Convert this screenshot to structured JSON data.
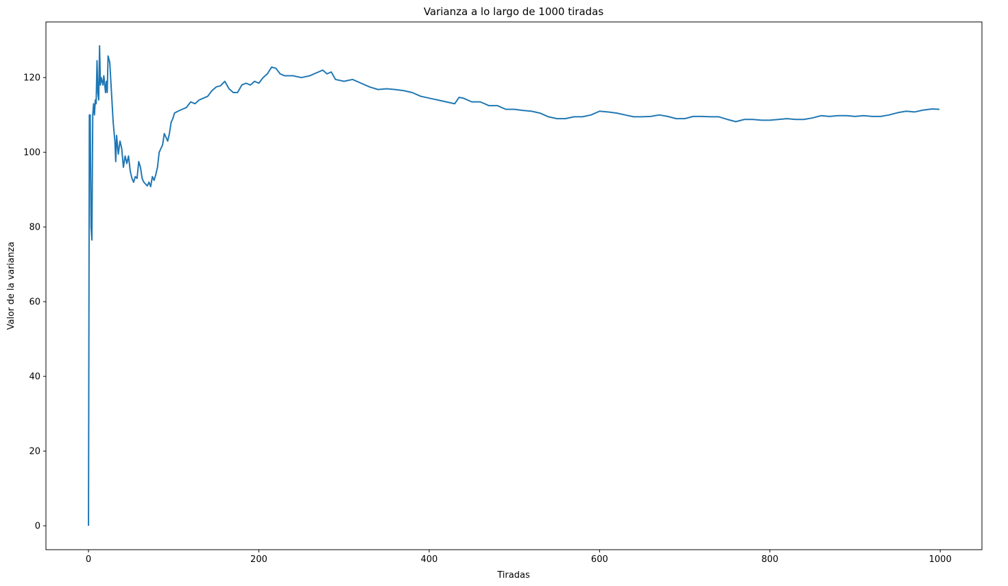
{
  "chart_data": {
    "type": "line",
    "title": "Varianza a lo largo de 1000 tiradas",
    "xlabel": "Tiradas",
    "ylabel": "Valor de la varianza",
    "color": "#1f77b4",
    "x": [
      0,
      1,
      2,
      3,
      4,
      5,
      6,
      7,
      8,
      9,
      10,
      11,
      12,
      13,
      14,
      15,
      17,
      18,
      20,
      21,
      22,
      23,
      25,
      27,
      29,
      31,
      32,
      33,
      35,
      37,
      39,
      41,
      43,
      45,
      47,
      49,
      51,
      53,
      55,
      57,
      59,
      61,
      63,
      65,
      67,
      69,
      71,
      73,
      75,
      77,
      79,
      81,
      83,
      85,
      87,
      89,
      91,
      93,
      95,
      97,
      99,
      101,
      105,
      110,
      115,
      120,
      125,
      130,
      135,
      140,
      145,
      150,
      155,
      160,
      165,
      170,
      175,
      180,
      185,
      190,
      195,
      200,
      205,
      210,
      215,
      220,
      225,
      230,
      240,
      250,
      260,
      270,
      275,
      280,
      285,
      290,
      300,
      310,
      320,
      330,
      340,
      350,
      360,
      370,
      380,
      390,
      400,
      410,
      420,
      430,
      435,
      440,
      450,
      460,
      470,
      480,
      490,
      500,
      510,
      520,
      530,
      540,
      550,
      560,
      570,
      580,
      590,
      600,
      610,
      620,
      630,
      640,
      650,
      660,
      670,
      680,
      690,
      700,
      710,
      720,
      730,
      740,
      750,
      760,
      770,
      780,
      790,
      800,
      810,
      820,
      830,
      840,
      850,
      860,
      870,
      880,
      890,
      900,
      910,
      920,
      930,
      940,
      950,
      960,
      970,
      980,
      990,
      999
    ],
    "values": [
      0,
      110,
      110,
      80,
      76.5,
      110,
      113,
      110,
      114,
      113,
      124.5,
      116,
      114,
      128.5,
      118,
      120,
      118,
      120.5,
      116,
      119,
      116,
      125.8,
      124,
      116,
      108,
      103,
      97.5,
      104.5,
      99.5,
      103,
      101,
      96,
      99,
      97,
      99,
      95,
      93,
      92,
      93.5,
      93,
      97.5,
      96,
      93,
      92,
      91.5,
      91,
      92,
      90.8,
      93.5,
      92.5,
      94,
      96,
      100,
      101,
      102,
      105,
      104,
      103,
      105,
      108,
      109,
      110.5,
      111,
      111.5,
      112,
      113.5,
      113,
      114,
      114.5,
      115,
      116.5,
      117.5,
      117.8,
      119,
      117,
      116,
      116,
      118,
      118.5,
      118,
      119,
      118.5,
      120,
      121,
      122.8,
      122.5,
      121,
      120.5,
      120.5,
      120,
      120.5,
      121.5,
      122,
      121,
      121.5,
      119.5,
      119,
      119.5,
      118.5,
      117.5,
      116.8,
      117,
      116.8,
      116.5,
      116,
      115,
      114.5,
      114,
      113.5,
      113,
      114.7,
      114.5,
      113.5,
      113.5,
      112.5,
      112.5,
      111.5,
      111.5,
      111.2,
      111,
      110.5,
      109.5,
      109,
      109,
      109.5,
      109.5,
      110,
      111,
      110.8,
      110.5,
      110,
      109.5,
      109.5,
      109.6,
      110,
      109.6,
      109,
      109,
      109.6,
      109.6,
      109.5,
      109.5,
      108.8,
      108.2,
      108.8,
      108.8,
      108.6,
      108.6,
      108.8,
      109,
      108.8,
      108.8,
      109.2,
      109.8,
      109.6,
      109.8,
      109.8,
      109.6,
      109.8,
      109.6,
      109.6,
      110,
      110.6,
      111,
      110.8,
      111.3,
      111.6,
      111.5
    ],
    "xlim": [
      -49.95,
      1048.95
    ],
    "ylim": [
      -6.4,
      134.9
    ],
    "xticks": [
      0,
      200,
      400,
      600,
      800,
      1000
    ],
    "yticks": [
      0,
      20,
      40,
      60,
      80,
      100,
      120
    ]
  }
}
